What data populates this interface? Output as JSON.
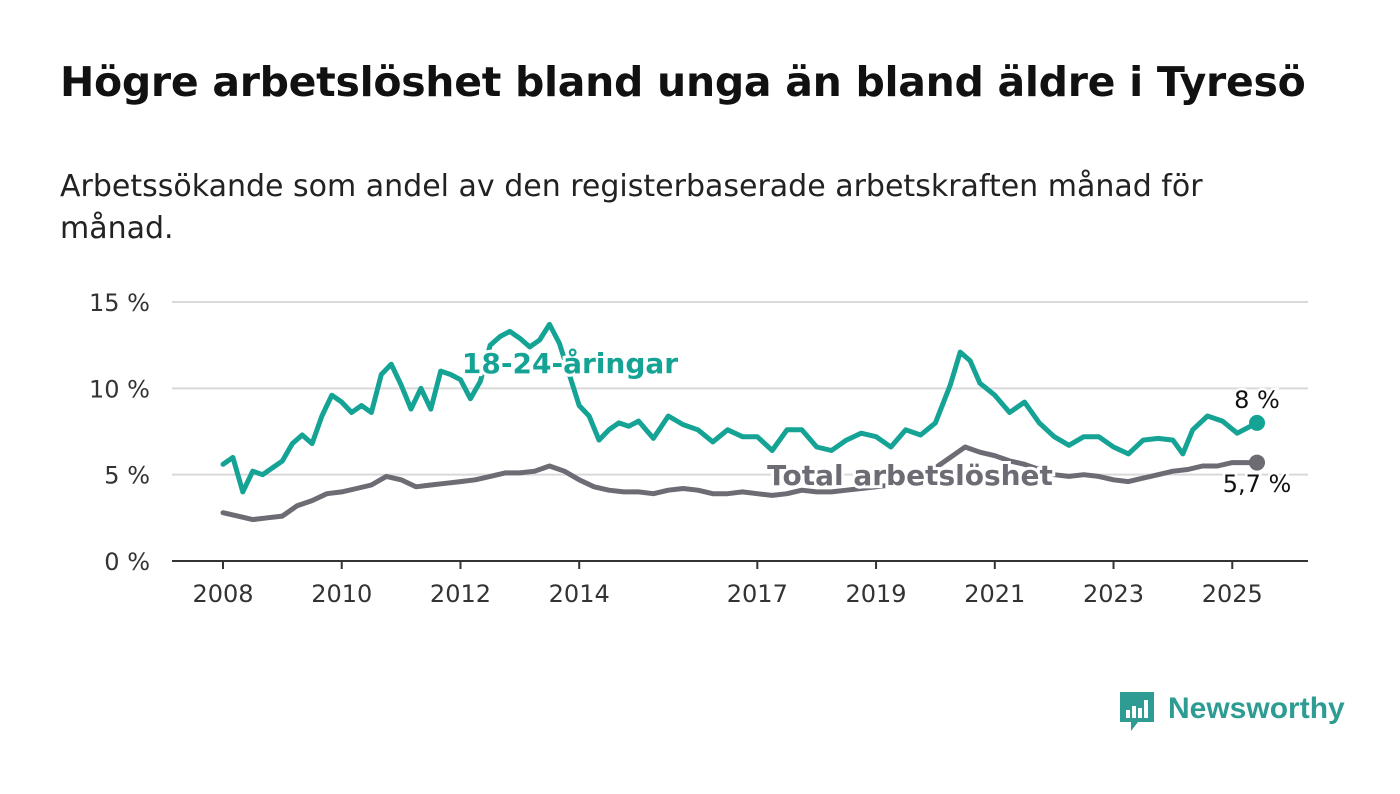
{
  "title": "Högre arbetslöshet bland unga än bland äldre i Tyresö",
  "subtitle": "Arbetssökande som andel av den registerbaserade arbetskraften månad för månad.",
  "brand": {
    "name": "Newsworthy",
    "color": "#2e9c92"
  },
  "chart_data": {
    "type": "line",
    "y_ticks": [
      "0 %",
      "5 %",
      "10 %",
      "15 %"
    ],
    "ylim": [
      0,
      15
    ],
    "x_ticks": [
      "2008",
      "2010",
      "2012",
      "2014",
      "2017",
      "2019",
      "2021",
      "2023",
      "2025"
    ],
    "x_range": [
      "2008-01",
      "2025-06"
    ],
    "grid": true,
    "series": [
      {
        "name": "18-24-åringar",
        "color": "#14a394",
        "end_label": "8 %",
        "points": [
          [
            "2008-01",
            5.6
          ],
          [
            "2008-03",
            6.0
          ],
          [
            "2008-05",
            4.0
          ],
          [
            "2008-07",
            5.2
          ],
          [
            "2008-09",
            5.0
          ],
          [
            "2008-11",
            5.4
          ],
          [
            "2009-01",
            5.8
          ],
          [
            "2009-03",
            6.8
          ],
          [
            "2009-05",
            7.3
          ],
          [
            "2009-07",
            6.8
          ],
          [
            "2009-09",
            8.4
          ],
          [
            "2009-11",
            9.6
          ],
          [
            "2010-01",
            9.2
          ],
          [
            "2010-03",
            8.6
          ],
          [
            "2010-05",
            9.0
          ],
          [
            "2010-07",
            8.6
          ],
          [
            "2010-09",
            10.8
          ],
          [
            "2010-11",
            11.4
          ],
          [
            "2011-01",
            10.2
          ],
          [
            "2011-03",
            8.8
          ],
          [
            "2011-05",
            10.0
          ],
          [
            "2011-07",
            8.8
          ],
          [
            "2011-09",
            11.0
          ],
          [
            "2011-11",
            10.8
          ],
          [
            "2012-01",
            10.5
          ],
          [
            "2012-03",
            9.4
          ],
          [
            "2012-05",
            10.4
          ],
          [
            "2012-07",
            12.5
          ],
          [
            "2012-09",
            13.0
          ],
          [
            "2012-11",
            13.3
          ],
          [
            "2013-01",
            12.9
          ],
          [
            "2013-03",
            12.4
          ],
          [
            "2013-05",
            12.8
          ],
          [
            "2013-07",
            13.7
          ],
          [
            "2013-09",
            12.6
          ],
          [
            "2013-11",
            10.8
          ],
          [
            "2014-01",
            9.0
          ],
          [
            "2014-03",
            8.4
          ],
          [
            "2014-05",
            7.0
          ],
          [
            "2014-07",
            7.6
          ],
          [
            "2014-09",
            8.0
          ],
          [
            "2014-11",
            7.8
          ],
          [
            "2015-01",
            8.1
          ],
          [
            "2015-04",
            7.1
          ],
          [
            "2015-07",
            8.4
          ],
          [
            "2015-10",
            7.9
          ],
          [
            "2016-01",
            7.6
          ],
          [
            "2016-04",
            6.9
          ],
          [
            "2016-07",
            7.6
          ],
          [
            "2016-10",
            7.2
          ],
          [
            "2017-01",
            7.2
          ],
          [
            "2017-04",
            6.4
          ],
          [
            "2017-07",
            7.6
          ],
          [
            "2017-10",
            7.6
          ],
          [
            "2018-01",
            6.6
          ],
          [
            "2018-04",
            6.4
          ],
          [
            "2018-07",
            7.0
          ],
          [
            "2018-10",
            7.4
          ],
          [
            "2019-01",
            7.2
          ],
          [
            "2019-04",
            6.6
          ],
          [
            "2019-07",
            7.6
          ],
          [
            "2019-10",
            7.3
          ],
          [
            "2020-01",
            8.0
          ],
          [
            "2020-04",
            10.2
          ],
          [
            "2020-06",
            12.1
          ],
          [
            "2020-08",
            11.6
          ],
          [
            "2020-10",
            10.3
          ],
          [
            "2021-01",
            9.6
          ],
          [
            "2021-04",
            8.6
          ],
          [
            "2021-07",
            9.2
          ],
          [
            "2021-10",
            8.0
          ],
          [
            "2022-01",
            7.2
          ],
          [
            "2022-04",
            6.7
          ],
          [
            "2022-07",
            7.2
          ],
          [
            "2022-10",
            7.2
          ],
          [
            "2023-01",
            6.6
          ],
          [
            "2023-04",
            6.2
          ],
          [
            "2023-07",
            7.0
          ],
          [
            "2023-10",
            7.1
          ],
          [
            "2024-01",
            7.0
          ],
          [
            "2024-03",
            6.2
          ],
          [
            "2024-05",
            7.6
          ],
          [
            "2024-08",
            8.4
          ],
          [
            "2024-11",
            8.1
          ],
          [
            "2025-02",
            7.4
          ],
          [
            "2025-06",
            8.0
          ]
        ]
      },
      {
        "name": "Total arbetslöshet",
        "color": "#6d6b73",
        "end_label": "5,7 %",
        "points": [
          [
            "2008-01",
            2.8
          ],
          [
            "2008-04",
            2.6
          ],
          [
            "2008-07",
            2.4
          ],
          [
            "2008-10",
            2.5
          ],
          [
            "2009-01",
            2.6
          ],
          [
            "2009-04",
            3.2
          ],
          [
            "2009-07",
            3.5
          ],
          [
            "2009-10",
            3.9
          ],
          [
            "2010-01",
            4.0
          ],
          [
            "2010-04",
            4.2
          ],
          [
            "2010-07",
            4.4
          ],
          [
            "2010-10",
            4.9
          ],
          [
            "2011-01",
            4.7
          ],
          [
            "2011-04",
            4.3
          ],
          [
            "2011-07",
            4.4
          ],
          [
            "2011-10",
            4.5
          ],
          [
            "2012-01",
            4.6
          ],
          [
            "2012-04",
            4.7
          ],
          [
            "2012-07",
            4.9
          ],
          [
            "2012-10",
            5.1
          ],
          [
            "2013-01",
            5.1
          ],
          [
            "2013-04",
            5.2
          ],
          [
            "2013-07",
            5.5
          ],
          [
            "2013-10",
            5.2
          ],
          [
            "2014-01",
            4.7
          ],
          [
            "2014-04",
            4.3
          ],
          [
            "2014-07",
            4.1
          ],
          [
            "2014-10",
            4.0
          ],
          [
            "2015-01",
            4.0
          ],
          [
            "2015-04",
            3.9
          ],
          [
            "2015-07",
            4.1
          ],
          [
            "2015-10",
            4.2
          ],
          [
            "2016-01",
            4.1
          ],
          [
            "2016-04",
            3.9
          ],
          [
            "2016-07",
            3.9
          ],
          [
            "2016-10",
            4.0
          ],
          [
            "2017-01",
            3.9
          ],
          [
            "2017-04",
            3.8
          ],
          [
            "2017-07",
            3.9
          ],
          [
            "2017-10",
            4.1
          ],
          [
            "2018-01",
            4.0
          ],
          [
            "2018-04",
            4.0
          ],
          [
            "2018-07",
            4.1
          ],
          [
            "2018-10",
            4.2
          ],
          [
            "2019-01",
            4.3
          ],
          [
            "2019-04",
            4.4
          ],
          [
            "2019-07",
            4.6
          ],
          [
            "2019-10",
            4.9
          ],
          [
            "2020-01",
            5.4
          ],
          [
            "2020-04",
            6.0
          ],
          [
            "2020-07",
            6.6
          ],
          [
            "2020-10",
            6.3
          ],
          [
            "2021-01",
            6.1
          ],
          [
            "2021-04",
            5.8
          ],
          [
            "2021-07",
            5.6
          ],
          [
            "2021-10",
            5.3
          ],
          [
            "2022-01",
            5.0
          ],
          [
            "2022-04",
            4.9
          ],
          [
            "2022-07",
            5.0
          ],
          [
            "2022-10",
            4.9
          ],
          [
            "2023-01",
            4.7
          ],
          [
            "2023-04",
            4.6
          ],
          [
            "2023-07",
            4.8
          ],
          [
            "2023-10",
            5.0
          ],
          [
            "2024-01",
            5.2
          ],
          [
            "2024-04",
            5.3
          ],
          [
            "2024-07",
            5.5
          ],
          [
            "2024-10",
            5.5
          ],
          [
            "2025-01",
            5.7
          ],
          [
            "2025-06",
            5.7
          ]
        ]
      }
    ]
  }
}
